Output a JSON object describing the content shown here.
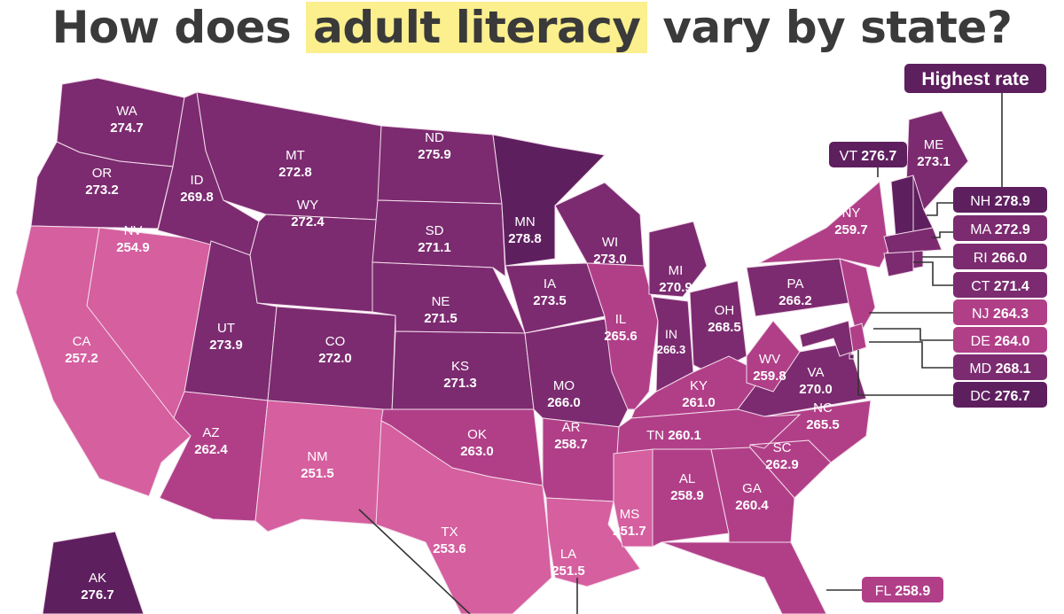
{
  "title": {
    "before": "How does ",
    "highlight": "adult literacy",
    "after": " vary by state?"
  },
  "highest_label": "Highest rate",
  "colors": {
    "darkest": "#5e1f5f",
    "dark": "#7c2b70",
    "medium": "#b13f88",
    "light": "#d55f9f",
    "highlight": "#fbef8e"
  },
  "states": [
    {
      "abbr": "WA",
      "value": "274.7"
    },
    {
      "abbr": "OR",
      "value": "273.2"
    },
    {
      "abbr": "CA",
      "value": "257.2"
    },
    {
      "abbr": "NV",
      "value": "254.9"
    },
    {
      "abbr": "ID",
      "value": "269.8"
    },
    {
      "abbr": "MT",
      "value": "272.8"
    },
    {
      "abbr": "WY",
      "value": "272.4"
    },
    {
      "abbr": "UT",
      "value": "273.9"
    },
    {
      "abbr": "CO",
      "value": "272.0"
    },
    {
      "abbr": "AZ",
      "value": "262.4"
    },
    {
      "abbr": "NM",
      "value": "251.5"
    },
    {
      "abbr": "ND",
      "value": "275.9"
    },
    {
      "abbr": "SD",
      "value": "271.1"
    },
    {
      "abbr": "NE",
      "value": "271.5"
    },
    {
      "abbr": "KS",
      "value": "271.3"
    },
    {
      "abbr": "OK",
      "value": "263.0"
    },
    {
      "abbr": "TX",
      "value": "253.6"
    },
    {
      "abbr": "MN",
      "value": "278.8"
    },
    {
      "abbr": "IA",
      "value": "273.5"
    },
    {
      "abbr": "MO",
      "value": "266.0"
    },
    {
      "abbr": "AR",
      "value": "258.7"
    },
    {
      "abbr": "LA",
      "value": "251.5"
    },
    {
      "abbr": "WI",
      "value": "273.0"
    },
    {
      "abbr": "IL",
      "value": "265.6"
    },
    {
      "abbr": "MI",
      "value": "270.9"
    },
    {
      "abbr": "IN",
      "value": "266.3"
    },
    {
      "abbr": "OH",
      "value": "268.5"
    },
    {
      "abbr": "KY",
      "value": "261.0"
    },
    {
      "abbr": "TN",
      "value": "260.1"
    },
    {
      "abbr": "MS",
      "value": "251.7"
    },
    {
      "abbr": "AL",
      "value": "258.9"
    },
    {
      "abbr": "GA",
      "value": "260.4"
    },
    {
      "abbr": "FL",
      "value": "258.9"
    },
    {
      "abbr": "SC",
      "value": "262.9"
    },
    {
      "abbr": "NC",
      "value": "265.5"
    },
    {
      "abbr": "VA",
      "value": "270.0"
    },
    {
      "abbr": "WV",
      "value": "259.8"
    },
    {
      "abbr": "PA",
      "value": "266.2"
    },
    {
      "abbr": "NY",
      "value": "259.7"
    },
    {
      "abbr": "ME",
      "value": "273.1"
    },
    {
      "abbr": "VT",
      "value": "276.7"
    },
    {
      "abbr": "NH",
      "value": "278.9"
    },
    {
      "abbr": "MA",
      "value": "272.9"
    },
    {
      "abbr": "CT",
      "value": "271.4"
    },
    {
      "abbr": "RI",
      "value": "266.0"
    },
    {
      "abbr": "NJ",
      "value": "264.3"
    },
    {
      "abbr": "DE",
      "value": "264.0"
    },
    {
      "abbr": "MD",
      "value": "268.1"
    },
    {
      "abbr": "DC",
      "value": "276.7"
    },
    {
      "abbr": "AK",
      "value": "276.7"
    }
  ]
}
